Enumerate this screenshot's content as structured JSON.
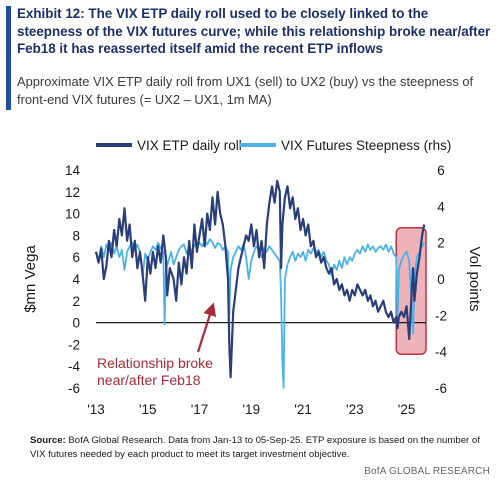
{
  "header": {
    "title": "Exhibit 12: The VIX ETP daily roll used to be closely linked to the steepness of the VIX futures curve; while this relationship broke near/after Feb18 it has reasserted itself amid the recent ETP inflows",
    "subtitle": "Approximate VIX ETP daily roll from UX1 (sell) to UX2 (buy) vs the steepness of front-end VIX futures (= UX2 – UX1, 1m MA)"
  },
  "footer": {
    "source_label": "Source:",
    "source_text": " BofA Global Research.  Data from Jan-13 to 05-Sep-25.  ETP exposure is based on the number of VIX futures needed by each product to meet its target investment objective.",
    "brand": "BofA GLOBAL RESEARCH"
  },
  "colors": {
    "roll": "#2a3f7a",
    "steepness": "#4cb2e6",
    "annotation": "#a52a3a",
    "highlight_fill": "#e8a0a8",
    "highlight_stroke": "#b83244",
    "title": "#1c2f66"
  },
  "chart_data": {
    "type": "line",
    "ylabel": "$mn Vega",
    "y2label": "Vol points",
    "ylim": [
      -6,
      14
    ],
    "y2lim": [
      -6,
      6
    ],
    "yticks": [
      -6,
      -4,
      -2,
      0,
      2,
      4,
      6,
      8,
      10,
      12,
      14
    ],
    "y2ticks": [
      -6,
      -4,
      -2,
      0,
      2,
      4,
      6
    ],
    "xlim": [
      2013.0,
      2025.75
    ],
    "xticks": [
      {
        "x": 2013,
        "label": "'13"
      },
      {
        "x": 2015,
        "label": "'15"
      },
      {
        "x": 2017,
        "label": "'17"
      },
      {
        "x": 2019,
        "label": "'19"
      },
      {
        "x": 2021,
        "label": "'21"
      },
      {
        "x": 2023,
        "label": "'23"
      },
      {
        "x": 2025,
        "label": "'25"
      }
    ],
    "legend": "top",
    "series": [
      {
        "name": "VIX ETP daily roll",
        "axis": "left",
        "x": [
          2013.0,
          2013.1,
          2013.2,
          2013.3,
          2013.4,
          2013.5,
          2013.6,
          2013.7,
          2013.8,
          2013.9,
          2014.0,
          2014.1,
          2014.2,
          2014.3,
          2014.4,
          2014.5,
          2014.6,
          2014.7,
          2014.8,
          2014.9,
          2015.0,
          2015.1,
          2015.2,
          2015.3,
          2015.4,
          2015.5,
          2015.6,
          2015.7,
          2015.75,
          2015.85,
          2016.0,
          2016.1,
          2016.2,
          2016.3,
          2016.4,
          2016.5,
          2016.6,
          2016.7,
          2016.8,
          2016.9,
          2017.0,
          2017.1,
          2017.2,
          2017.3,
          2017.4,
          2017.5,
          2017.6,
          2017.7,
          2017.8,
          2017.9,
          2018.0,
          2018.1,
          2018.15,
          2018.2,
          2018.3,
          2018.4,
          2018.5,
          2018.6,
          2018.7,
          2018.8,
          2018.9,
          2019.0,
          2019.1,
          2019.2,
          2019.3,
          2019.4,
          2019.5,
          2019.6,
          2019.7,
          2019.8,
          2019.9,
          2020.0,
          2020.1,
          2020.15,
          2020.2,
          2020.3,
          2020.4,
          2020.5,
          2020.6,
          2020.7,
          2020.8,
          2020.9,
          2021.0,
          2021.1,
          2021.2,
          2021.3,
          2021.4,
          2021.5,
          2021.6,
          2021.7,
          2021.8,
          2021.9,
          2022.0,
          2022.1,
          2022.2,
          2022.3,
          2022.4,
          2022.5,
          2022.6,
          2022.7,
          2022.8,
          2022.9,
          2023.0,
          2023.1,
          2023.2,
          2023.3,
          2023.4,
          2023.5,
          2023.6,
          2023.7,
          2023.8,
          2023.9,
          2024.0,
          2024.1,
          2024.2,
          2024.3,
          2024.4,
          2024.5,
          2024.6,
          2024.65,
          2024.7,
          2024.8,
          2024.9,
          2025.0,
          2025.1,
          2025.2,
          2025.25,
          2025.3,
          2025.4,
          2025.5,
          2025.6,
          2025.68
        ],
        "values": [
          6.5,
          5.5,
          6.8,
          4.0,
          5.2,
          7.5,
          6.0,
          8.5,
          7.0,
          9.5,
          8.0,
          10.5,
          7.5,
          9.0,
          6.0,
          7.5,
          5.0,
          6.5,
          4.5,
          2.0,
          6.0,
          4.5,
          6.5,
          5.0,
          7.0,
          5.5,
          8.0,
          6.0,
          2.5,
          5.0,
          4.0,
          2.0,
          5.5,
          3.5,
          6.0,
          4.5,
          7.5,
          5.0,
          9.0,
          6.5,
          8.0,
          9.5,
          7.0,
          10.0,
          8.5,
          11.5,
          9.0,
          12.0,
          10.0,
          9.0,
          7.0,
          4.0,
          -2.0,
          -5.0,
          1.0,
          3.0,
          5.0,
          6.0,
          7.0,
          8.0,
          7.5,
          9.0,
          7.0,
          8.5,
          6.0,
          7.5,
          5.0,
          9.0,
          11.0,
          12.5,
          11.0,
          13.0,
          12.0,
          5.0,
          9.0,
          11.5,
          12.5,
          10.5,
          11.5,
          9.5,
          10.5,
          8.5,
          9.5,
          8.0,
          9.0,
          7.0,
          7.5,
          6.0,
          6.5,
          5.5,
          6.0,
          5.0,
          4.5,
          5.0,
          3.5,
          4.0,
          3.0,
          3.5,
          2.5,
          3.0,
          2.0,
          3.0,
          2.5,
          3.5,
          3.0,
          2.5,
          3.0,
          2.0,
          2.5,
          1.5,
          2.0,
          1.0,
          1.5,
          2.0,
          1.0,
          0.5,
          1.0,
          0.0,
          0.5,
          -0.5,
          0.5,
          1.0,
          0.5,
          1.5,
          -1.5,
          3.0,
          5.0,
          2.0,
          4.5,
          6.0,
          8.0,
          9.0
        ]
      },
      {
        "name": "VIX Futures Steepness (rhs)",
        "axis": "right",
        "x": [
          2013.0,
          2013.1,
          2013.2,
          2013.3,
          2013.4,
          2013.5,
          2013.6,
          2013.7,
          2013.8,
          2013.9,
          2014.0,
          2014.1,
          2014.2,
          2014.3,
          2014.4,
          2014.5,
          2014.6,
          2014.7,
          2014.8,
          2014.9,
          2015.0,
          2015.1,
          2015.2,
          2015.3,
          2015.4,
          2015.5,
          2015.6,
          2015.65,
          2015.7,
          2015.8,
          2015.9,
          2016.0,
          2016.1,
          2016.2,
          2016.3,
          2016.4,
          2016.5,
          2016.6,
          2016.7,
          2016.8,
          2016.9,
          2017.0,
          2017.1,
          2017.2,
          2017.3,
          2017.4,
          2017.5,
          2017.6,
          2017.7,
          2017.8,
          2017.9,
          2018.0,
          2018.1,
          2018.15,
          2018.2,
          2018.3,
          2018.4,
          2018.5,
          2018.6,
          2018.7,
          2018.8,
          2018.9,
          2019.0,
          2019.1,
          2019.2,
          2019.3,
          2019.4,
          2019.5,
          2019.6,
          2019.7,
          2019.8,
          2019.9,
          2020.0,
          2020.1,
          2020.15,
          2020.2,
          2020.25,
          2020.3,
          2020.4,
          2020.5,
          2020.6,
          2020.7,
          2020.8,
          2020.9,
          2021.0,
          2021.1,
          2021.2,
          2021.3,
          2021.4,
          2021.5,
          2021.6,
          2021.7,
          2021.8,
          2021.9,
          2022.0,
          2022.1,
          2022.2,
          2022.3,
          2022.4,
          2022.5,
          2022.6,
          2022.7,
          2022.8,
          2022.9,
          2023.0,
          2023.1,
          2023.2,
          2023.3,
          2023.4,
          2023.5,
          2023.6,
          2023.7,
          2023.8,
          2023.9,
          2024.0,
          2024.1,
          2024.2,
          2024.3,
          2024.4,
          2024.5,
          2024.6,
          2024.65,
          2024.7,
          2024.8,
          2024.9,
          2025.0,
          2025.1,
          2025.2,
          2025.25,
          2025.3,
          2025.4,
          2025.5,
          2025.6,
          2025.68
        ],
        "values": [
          1.5,
          1.0,
          1.8,
          1.2,
          1.9,
          1.5,
          2.0,
          1.4,
          1.8,
          1.2,
          1.6,
          0.5,
          1.5,
          1.8,
          2.0,
          1.6,
          1.9,
          1.5,
          0.2,
          1.4,
          1.0,
          1.5,
          1.8,
          1.6,
          2.0,
          1.7,
          1.5,
          -2.5,
          0.5,
          1.0,
          1.5,
          0.8,
          1.2,
          1.6,
          1.8,
          1.9,
          1.4,
          1.8,
          1.5,
          1.9,
          1.7,
          2.0,
          1.8,
          2.1,
          1.9,
          2.2,
          2.0,
          1.7,
          2.0,
          1.9,
          1.6,
          1.8,
          1.5,
          -2.0,
          0.5,
          1.2,
          1.5,
          1.8,
          1.6,
          1.9,
          1.2,
          0.0,
          1.0,
          1.5,
          1.8,
          1.6,
          1.2,
          1.7,
          1.5,
          1.8,
          1.6,
          1.4,
          1.2,
          1.0,
          -1.0,
          -4.5,
          -6.0,
          0.0,
          0.8,
          1.2,
          1.5,
          1.0,
          1.4,
          1.2,
          1.5,
          1.0,
          1.6,
          1.4,
          1.7,
          1.5,
          1.6,
          1.2,
          1.5,
          1.0,
          0.8,
          0.2,
          0.8,
          0.5,
          1.0,
          0.6,
          1.2,
          0.8,
          1.2,
          1.0,
          1.4,
          1.6,
          1.4,
          1.8,
          1.5,
          1.9,
          1.6,
          1.8,
          1.5,
          1.7,
          1.8,
          1.6,
          1.9,
          1.5,
          1.8,
          1.4,
          1.2,
          -2.5,
          0.5,
          1.0,
          1.3,
          1.5,
          1.0,
          -1.5,
          -3.0,
          0.0,
          1.2,
          1.5,
          1.8,
          2.0
        ]
      }
    ],
    "annotations": [
      {
        "text": "Relationship broke",
        "x": 2018.15,
        "y": -5.0
      },
      {
        "text": "near/after Feb18",
        "x": 2018.15,
        "y": -5.0
      }
    ],
    "highlight": {
      "x_start": 2024.6,
      "x_end": 2025.75
    }
  }
}
